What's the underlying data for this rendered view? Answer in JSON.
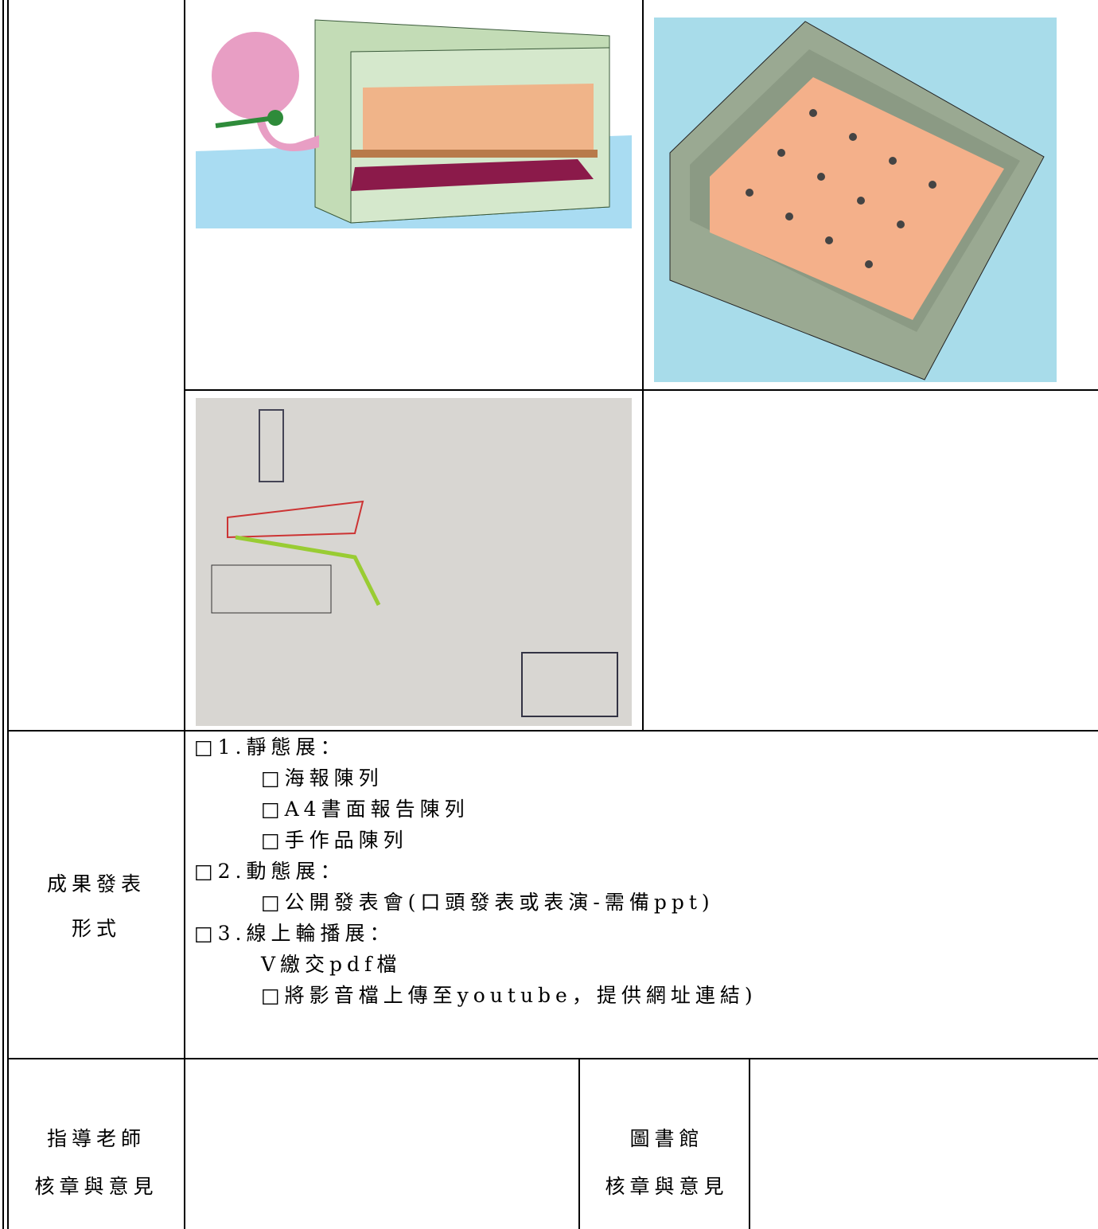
{
  "results_section": {
    "label_lines": [
      "成果發表",
      "形式"
    ],
    "groups": [
      {
        "heading": "□1.靜態展：",
        "options": [
          "□海報陳列",
          "□A4書面報告陳列",
          "□手作品陳列"
        ]
      },
      {
        "heading": "□2.動態展：",
        "options": [
          "□公開發表會(口頭發表或表演-需備ppt)"
        ]
      },
      {
        "heading": "□3.線上輪播展：",
        "options": [
          "V繳交pdf檔",
          "□將影音檔上傳至youtube，提供網址連結)"
        ]
      }
    ]
  },
  "signature_section": {
    "teacher_label_lines": [
      "指導老師",
      "核章與意見"
    ],
    "library_label_lines": [
      "圖書館",
      "核章與意見"
    ]
  }
}
